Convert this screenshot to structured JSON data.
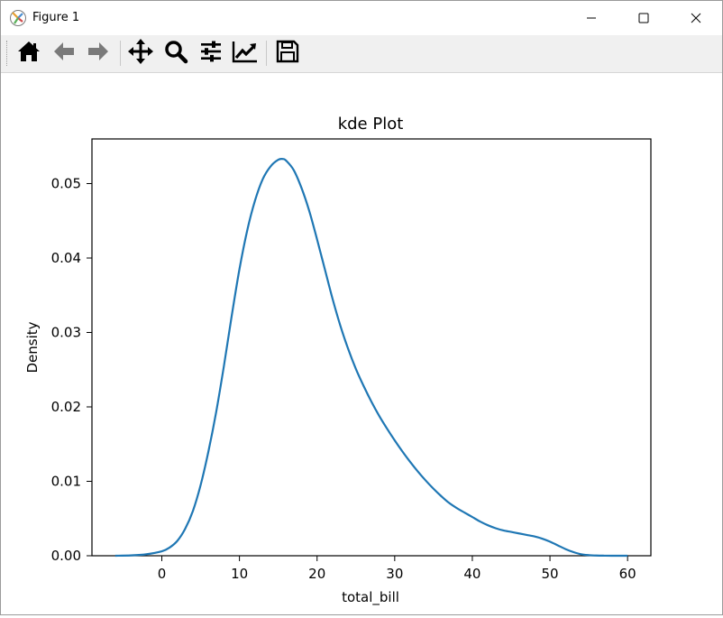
{
  "window": {
    "title": "Figure 1",
    "minimize_icon": "minimize-icon",
    "maximize_icon": "maximize-icon",
    "close_icon": "close-icon"
  },
  "toolbar": {
    "buttons": [
      {
        "name": "home",
        "icon": "home-icon"
      },
      {
        "name": "back",
        "icon": "arrow-left-icon"
      },
      {
        "name": "forward",
        "icon": "arrow-right-icon"
      },
      {
        "name": "pan",
        "icon": "move-icon"
      },
      {
        "name": "zoom",
        "icon": "zoom-icon"
      },
      {
        "name": "subplots",
        "icon": "sliders-icon"
      },
      {
        "name": "customize",
        "icon": "line-chart-icon"
      },
      {
        "name": "save",
        "icon": "floppy-disk-icon"
      }
    ]
  },
  "chart_data": {
    "type": "line",
    "title": "kde Plot",
    "xlabel": "total_bill",
    "ylabel": "Density",
    "xlim": [
      -9,
      63
    ],
    "ylim": [
      0,
      0.056
    ],
    "xticks": [
      0,
      10,
      20,
      30,
      40,
      50,
      60
    ],
    "yticks": [
      0.0,
      0.01,
      0.02,
      0.03,
      0.04,
      0.05
    ],
    "ytick_labels": [
      "0.00",
      "0.01",
      "0.02",
      "0.03",
      "0.04",
      "0.05"
    ],
    "grid": false,
    "color": "#1f77b4",
    "series": [
      {
        "x": [
          -6,
          -4,
          -2,
          0,
          1,
          2,
          3,
          4,
          5,
          6,
          7,
          8,
          9,
          10,
          11,
          12,
          13,
          14,
          15,
          15.6,
          16,
          17,
          18,
          19,
          20,
          21,
          22,
          23,
          24,
          25,
          26,
          27,
          28,
          29,
          30,
          31,
          32,
          33,
          34,
          35,
          36,
          37,
          38,
          39,
          40,
          41,
          42,
          43,
          44,
          45,
          46,
          47,
          48,
          49,
          50,
          51,
          52,
          53,
          54,
          55,
          56,
          57,
          58,
          60
        ],
        "y": [
          0.0,
          5e-05,
          0.0002,
          0.0006,
          0.0011,
          0.002,
          0.0036,
          0.006,
          0.0095,
          0.014,
          0.0193,
          0.0255,
          0.0322,
          0.0385,
          0.0437,
          0.0477,
          0.0506,
          0.0523,
          0.0532,
          0.0533,
          0.0531,
          0.0518,
          0.0494,
          0.0463,
          0.0425,
          0.0385,
          0.0345,
          0.0309,
          0.0278,
          0.0251,
          0.0228,
          0.0207,
          0.0188,
          0.0171,
          0.0155,
          0.014,
          0.0126,
          0.0113,
          0.0101,
          0.009,
          0.008,
          0.0071,
          0.0064,
          0.0058,
          0.0052,
          0.0046,
          0.0041,
          0.0037,
          0.0034,
          0.0032,
          0.003,
          0.0028,
          0.0026,
          0.0023,
          0.0019,
          0.0014,
          0.0009,
          0.0005,
          0.0002,
          8e-05,
          3e-05,
          1e-05,
          0.0,
          0.0
        ]
      }
    ]
  }
}
